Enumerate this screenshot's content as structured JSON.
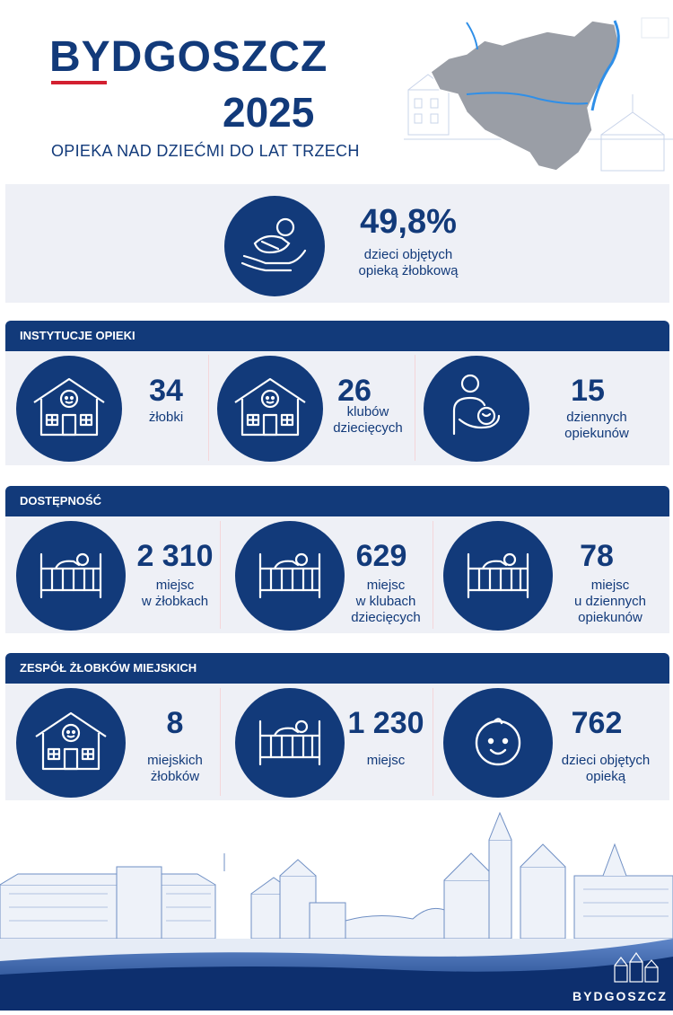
{
  "header": {
    "title": "BYDGOSZCZ",
    "year": "2025",
    "subtitle": "OPIEKA NAD DZIEĆMI DO LAT TRZECH"
  },
  "highlight": {
    "icon": "baby-in-hands-icon",
    "value": "49,8%",
    "label_line1": "dzieci objętych",
    "label_line2": "opieką żłobkową"
  },
  "institutions": {
    "header": "INSTYTUCJE OPIEKI",
    "items": [
      {
        "icon": "nursery-house-icon",
        "value": "34",
        "label_line1": "żłobki",
        "label_line2": ""
      },
      {
        "icon": "nursery-house-icon",
        "value": "26",
        "label_line1": "klubów",
        "label_line2": "dziecięcych"
      },
      {
        "icon": "caregiver-with-baby-icon",
        "value": "15",
        "label_line1": "dziennych",
        "label_line2": "opiekunów"
      }
    ]
  },
  "availability": {
    "header": "DOSTĘPNOŚĆ",
    "items": [
      {
        "icon": "crib-icon",
        "value": "2 310",
        "label_line1": "miejsc",
        "label_line2": "w żłobkach",
        "label_line3": ""
      },
      {
        "icon": "crib-icon",
        "value": "629",
        "label_line1": "miejsc",
        "label_line2": "w klubach",
        "label_line3": "dziecięcych"
      },
      {
        "icon": "crib-icon",
        "value": "78",
        "label_line1": "miejsc",
        "label_line2": "u dziennych",
        "label_line3": "opiekunów"
      }
    ]
  },
  "city_nurseries": {
    "header": "ZESPÓŁ ŻŁOBKÓW MIEJSKICH",
    "items": [
      {
        "icon": "nursery-house-icon",
        "value": "8",
        "label_line1": "miejskich",
        "label_line2": "żłobków"
      },
      {
        "icon": "crib-icon",
        "value": "1 230",
        "label_line1": "miejsc",
        "label_line2": ""
      },
      {
        "icon": "baby-face-icon",
        "value": "762",
        "label_line1": "dzieci objętych",
        "label_line2": "opieką"
      }
    ]
  },
  "footer": {
    "logo_text": "BYDGOSZCZ"
  },
  "colors": {
    "navy": "#123a7a",
    "accent_red": "#d32030",
    "panel": "#eef0f6"
  }
}
